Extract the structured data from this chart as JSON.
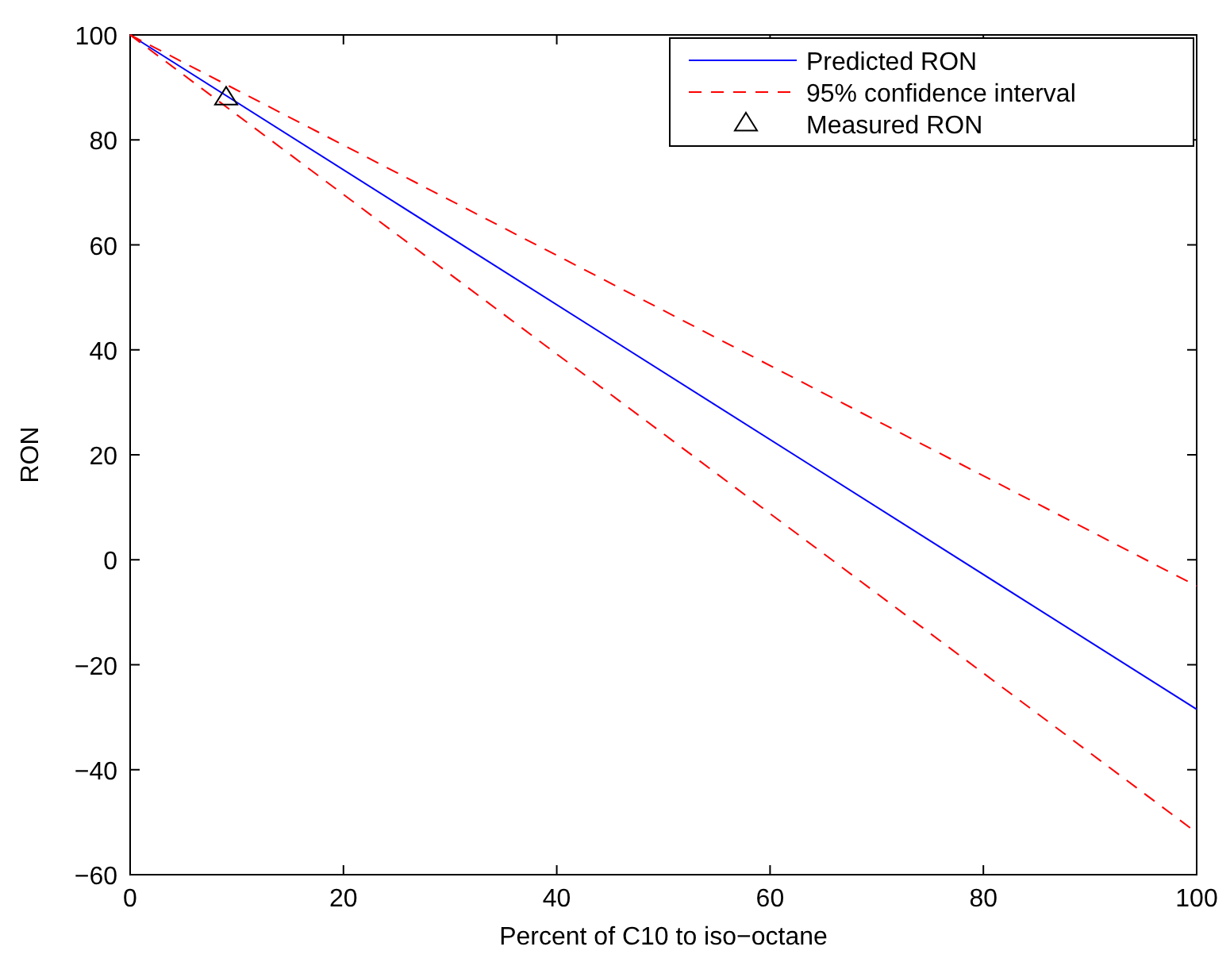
{
  "chart_data": {
    "type": "line",
    "xlabel": "Percent of C10 to iso−octane",
    "ylabel": "RON",
    "xlim": [
      0,
      100
    ],
    "xticks": [
      0,
      20,
      40,
      60,
      80,
      100
    ],
    "ylim": [
      -60,
      100
    ],
    "yticks": [
      -60,
      -40,
      -20,
      0,
      20,
      40,
      60,
      80,
      100
    ],
    "grid": false,
    "legend": "top right",
    "series": [
      {
        "name": "Predicted RON",
        "color": "#0000ff",
        "x": [
          0,
          100
        ],
        "values": [
          100,
          -28.5
        ],
        "line_style": "solid",
        "marker": "none"
      },
      {
        "name": "95% confidence interval",
        "color": "#ff0000",
        "x": [
          0,
          100
        ],
        "values": [
          100,
          -5
        ],
        "line_style": "dashed",
        "marker": "none"
      },
      {
        "color": "#ff0000",
        "x": [
          0,
          100
        ],
        "values": [
          100,
          -52
        ],
        "line_style": "dashed",
        "marker": "none"
      },
      {
        "name": "Measured RON",
        "type": "scatter",
        "color": "#000000",
        "x": [
          9
        ],
        "values": [
          88
        ],
        "marker": "triangle"
      }
    ]
  }
}
